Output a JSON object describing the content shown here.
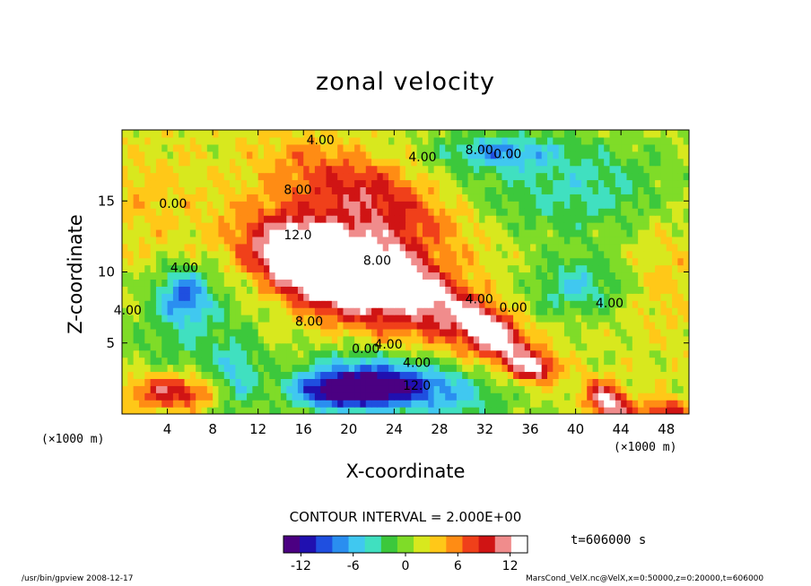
{
  "chart_data": {
    "type": "heatmap",
    "title": "zonal velocity",
    "xlabel": "X-coordinate",
    "ylabel": "Z-coordinate",
    "x_unit": "(×1000 m)",
    "x_range": [
      0,
      50
    ],
    "y_range": [
      0,
      20
    ],
    "x_ticks": [
      4,
      8,
      12,
      16,
      20,
      24,
      28,
      32,
      36,
      40,
      44,
      48
    ],
    "y_ticks": [
      5,
      10,
      15
    ],
    "contour_interval_text": "CONTOUR INTERVAL = 2.000E+00",
    "time_text": "t=606000 s",
    "colorbar": {
      "range": [
        -14,
        14
      ],
      "ticks": [
        -12,
        -6,
        0,
        6,
        12
      ],
      "colors": [
        "#4b0082",
        "#2010b0",
        "#1f4fe0",
        "#2a8ef0",
        "#40c8f0",
        "#40e0c0",
        "#3cc83c",
        "#7fdc28",
        "#d8e81e",
        "#ffc818",
        "#ff8c14",
        "#f0401a",
        "#d01414",
        "#f08c8c",
        "#ffffff"
      ]
    },
    "contour_labels": [
      {
        "text": "4.00",
        "x": 17.5,
        "y": 19.0
      },
      {
        "text": "0.00",
        "x": 4.5,
        "y": 14.5
      },
      {
        "text": "4.00",
        "x": 5.5,
        "y": 10.0
      },
      {
        "text": "4.00",
        "x": 0.5,
        "y": 7.0
      },
      {
        "text": "8.00",
        "x": 15.5,
        "y": 15.5
      },
      {
        "text": "12.0",
        "x": 15.5,
        "y": 12.3
      },
      {
        "text": "8.00",
        "x": 22.5,
        "y": 10.5
      },
      {
        "text": "8.00",
        "x": 16.5,
        "y": 6.2
      },
      {
        "text": "4.00",
        "x": 23.5,
        "y": 4.6
      },
      {
        "text": "0.00",
        "x": 21.5,
        "y": 4.3
      },
      {
        "text": "4.00",
        "x": 26.0,
        "y": 3.3
      },
      {
        "text": "12.0",
        "x": 26.0,
        "y": 1.7
      },
      {
        "text": "4.00",
        "x": 31.5,
        "y": 7.8
      },
      {
        "text": "0.00",
        "x": 34.5,
        "y": 7.2
      },
      {
        "text": "4.00",
        "x": 43.0,
        "y": 7.5
      },
      {
        "text": "4.00",
        "x": 26.5,
        "y": 17.8
      },
      {
        "text": "0.00",
        "x": 34.0,
        "y": 18.0
      },
      {
        "text": "8.00",
        "x": 31.5,
        "y": 18.3
      }
    ],
    "field_features": [
      {
        "x": 17.5,
        "y": 10.5,
        "value": 16,
        "sx": 5.5,
        "sy": 2.2,
        "rot": -15
      },
      {
        "x": 20.5,
        "y": 10.0,
        "value": 10,
        "sx": 9.0,
        "sy": 3.8,
        "rot": -20
      },
      {
        "x": 33.0,
        "y": 5.6,
        "value": 12,
        "sx": 3.5,
        "sy": 1.5,
        "rot": -30
      },
      {
        "x": 36.5,
        "y": 3.3,
        "value": 9,
        "sx": 2.0,
        "sy": 1.0,
        "rot": 0
      },
      {
        "x": 43.0,
        "y": 0.8,
        "value": 12,
        "sx": 2.2,
        "sy": 1.2,
        "rot": -25
      },
      {
        "x": 48.0,
        "y": 0.3,
        "value": 8,
        "sx": 2.0,
        "sy": 0.8,
        "rot": 0
      },
      {
        "x": 22.0,
        "y": 15.5,
        "value": 7,
        "sx": 8.5,
        "sy": 2.5,
        "rot": -18
      },
      {
        "x": 27.0,
        "y": 8.5,
        "value": 6,
        "sx": 6.0,
        "sy": 2.0,
        "rot": -35
      },
      {
        "x": 19.5,
        "y": 1.6,
        "value": -15,
        "sx": 4.5,
        "sy": 1.3,
        "rot": 0
      },
      {
        "x": 25.0,
        "y": 2.2,
        "value": -11,
        "sx": 7.5,
        "sy": 2.0,
        "rot": -8
      },
      {
        "x": 5.5,
        "y": 8.5,
        "value": -8,
        "sx": 2.3,
        "sy": 1.8,
        "rot": 0
      },
      {
        "x": 6.0,
        "y": 6.0,
        "value": -4,
        "sx": 5.0,
        "sy": 3.5,
        "rot": 10
      },
      {
        "x": 40.0,
        "y": 16.0,
        "value": -5,
        "sx": 9.0,
        "sy": 3.5,
        "rot": 0
      },
      {
        "x": 40.0,
        "y": 9.0,
        "value": -6,
        "sx": 4.0,
        "sy": 2.0,
        "rot": 0
      },
      {
        "x": 33.0,
        "y": 18.5,
        "value": -7,
        "sx": 5.0,
        "sy": 1.2,
        "rot": 0
      },
      {
        "x": 4.5,
        "y": 1.6,
        "value": 9,
        "sx": 4.0,
        "sy": 1.2,
        "rot": 0
      },
      {
        "x": 10.0,
        "y": 2.5,
        "value": -6,
        "sx": 2.2,
        "sy": 2.4,
        "rot": 0
      },
      {
        "x": 2.0,
        "y": 15.0,
        "value": 2,
        "sx": 4.0,
        "sy": 4.0,
        "rot": 0
      },
      {
        "x": 48.0,
        "y": 10.0,
        "value": 2,
        "sx": 3.0,
        "sy": 5.0,
        "rot": 0
      }
    ]
  },
  "footer": {
    "left": "/usr/bin/gpview  2008-12-17",
    "right": "MarsCond_VelX.nc@VelX,x=0:50000,z=0:20000,t=606000"
  }
}
